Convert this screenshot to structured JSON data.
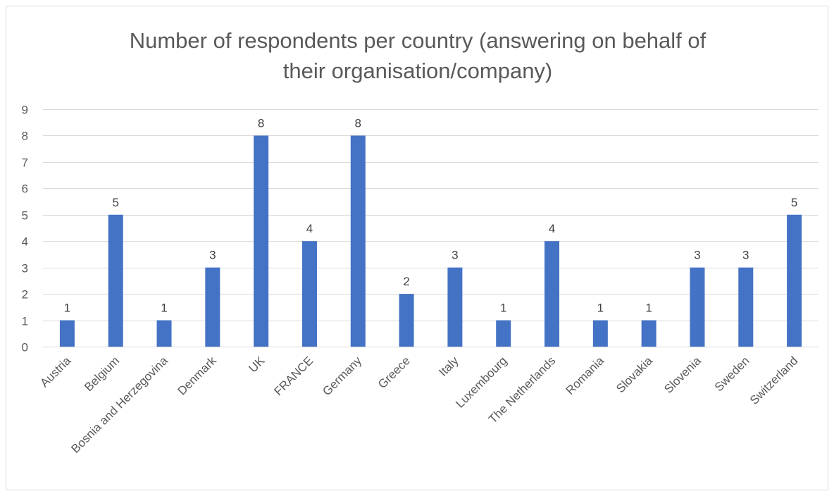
{
  "chart_data": {
    "type": "bar",
    "title_lines": [
      "Number of respondents per country (answering on behalf of",
      "their organisation/company)"
    ],
    "categories": [
      "Austria",
      "Belgium",
      "Bosnia and Herzegovina",
      "Denmark",
      "UK",
      "FRANCE",
      "Germany",
      "Greece",
      "Italy",
      "Luxembourg",
      "The Netherlands",
      "Romania",
      "Slovakia",
      "Slovenia",
      "Sweden",
      "Switzerland"
    ],
    "values": [
      1,
      5,
      1,
      3,
      8,
      4,
      8,
      2,
      3,
      1,
      4,
      1,
      1,
      3,
      3,
      5
    ],
    "ylim": [
      0,
      9
    ],
    "yticks": [
      0,
      1,
      2,
      3,
      4,
      5,
      6,
      7,
      8,
      9
    ],
    "grid": true,
    "data_labels": true,
    "legend": "none",
    "bar_color": "#4472c4",
    "xlabel": "",
    "ylabel": ""
  }
}
